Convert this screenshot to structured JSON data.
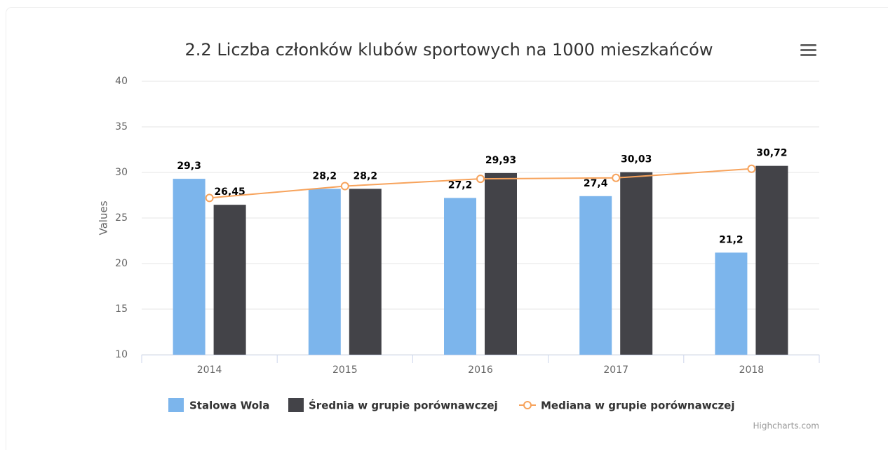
{
  "chart_data": {
    "type": "bar",
    "title": "2.2 Liczba członków klubów sportowych na 1000 mieszkańców",
    "y_axis_label": "Values",
    "credits": "Highcharts.com",
    "categories": [
      "2014",
      "2015",
      "2016",
      "2017",
      "2018"
    ],
    "ylim": [
      10,
      40
    ],
    "yticks": [
      10,
      15,
      20,
      25,
      30,
      35,
      40
    ],
    "grid": true,
    "series": [
      {
        "name": "Stalowa Wola",
        "type": "bar",
        "color": "#7cb5ec",
        "values": [
          29.3,
          28.2,
          27.2,
          27.4,
          21.2
        ],
        "value_labels": [
          "29,3",
          "28,2",
          "27,2",
          "27,4",
          "21,2"
        ]
      },
      {
        "name": "Średnia w grupie porównawczej",
        "type": "bar",
        "color": "#434348",
        "values": [
          26.45,
          28.2,
          29.93,
          30.03,
          30.72
        ],
        "value_labels": [
          "26,45",
          "28,2",
          "29,93",
          "30,03",
          "30,72"
        ]
      },
      {
        "name": "Mediana w grupie porównawczej",
        "type": "line",
        "color": "#f7a35c",
        "values": [
          27.2,
          28.5,
          29.3,
          29.4,
          30.4
        ]
      }
    ]
  }
}
